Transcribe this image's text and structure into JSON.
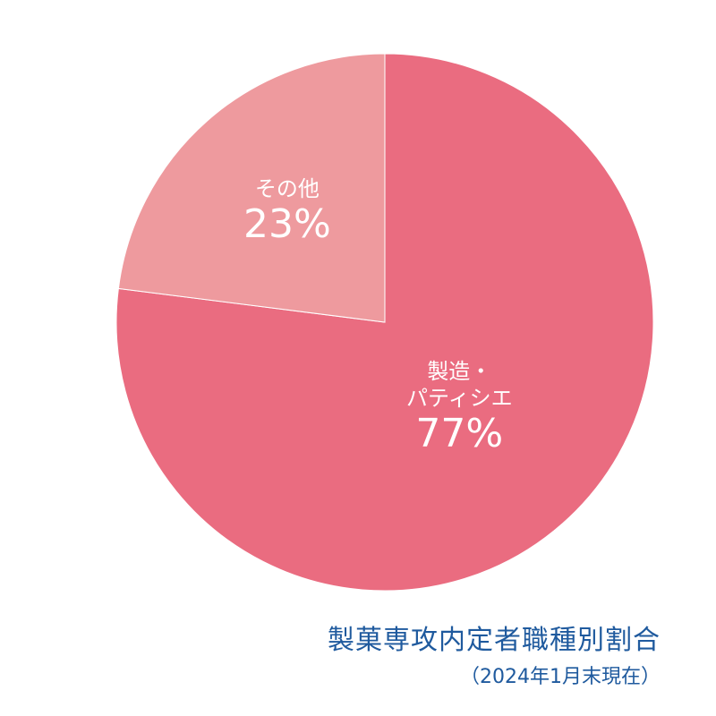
{
  "chart_data": {
    "type": "pie",
    "title": "製菓専攻内定者職種別割合",
    "subtitle": "（2024年1月末現在）",
    "categories": [
      "製造・\nパティシエ",
      "その他"
    ],
    "values": [
      77,
      23
    ],
    "value_labels": [
      "77%",
      "23%"
    ],
    "colors": [
      "#ea6c80",
      "#ee9a9e"
    ]
  }
}
